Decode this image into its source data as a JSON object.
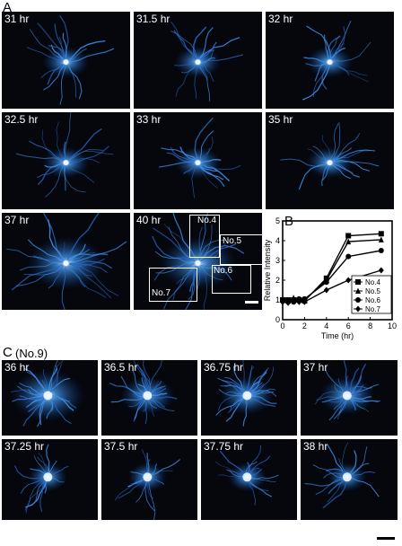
{
  "panel_labels": {
    "a": "A",
    "b": "B",
    "c": "C",
    "c_note": "(No.9)"
  },
  "section_a": {
    "frames": [
      "31 hr",
      "31.5 hr",
      "32 hr",
      "32.5 hr",
      "33 hr",
      "35 hr",
      "37 hr",
      "40 hr"
    ],
    "rois": [
      "No.4",
      "No.5",
      "No.6",
      "No.7"
    ]
  },
  "section_c": {
    "frames": [
      "36 hr",
      "36.5 hr",
      "36.75 hr",
      "37 hr",
      "37.25 hr",
      "37.5 hr",
      "37.75 hr",
      "38 hr"
    ]
  },
  "chart_data": {
    "type": "line",
    "xlabel": "Time (hr)",
    "ylabel": "Relative Intensity",
    "xlim": [
      0,
      10
    ],
    "ylim": [
      0,
      5
    ],
    "xticks": [
      0,
      2,
      4,
      6,
      8,
      10
    ],
    "yticks": [
      0,
      1,
      2,
      3,
      4,
      5
    ],
    "legend_position": "bottom-right",
    "series": [
      {
        "name": "No.4",
        "marker": "square",
        "x": [
          0,
          0.5,
          1,
          1.5,
          2,
          4,
          6,
          9
        ],
        "y": [
          1.0,
          1.0,
          1.0,
          1.0,
          0.95,
          2.1,
          4.25,
          4.35
        ]
      },
      {
        "name": "No.5",
        "marker": "triangle",
        "x": [
          0,
          0.5,
          1,
          1.5,
          2,
          4,
          6,
          9
        ],
        "y": [
          1.05,
          0.95,
          1.1,
          1.0,
          1.0,
          2.0,
          3.95,
          4.05
        ]
      },
      {
        "name": "No.6",
        "marker": "circle",
        "x": [
          0,
          0.5,
          1,
          1.5,
          2,
          4,
          6,
          9
        ],
        "y": [
          0.95,
          1.0,
          0.9,
          1.05,
          1.05,
          1.9,
          3.2,
          3.5
        ]
      },
      {
        "name": "No.7",
        "marker": "diamond",
        "x": [
          0,
          0.5,
          1,
          1.5,
          2,
          4,
          6,
          9
        ],
        "y": [
          0.9,
          0.85,
          0.95,
          0.9,
          0.9,
          1.5,
          2.0,
          2.5
        ]
      }
    ]
  }
}
